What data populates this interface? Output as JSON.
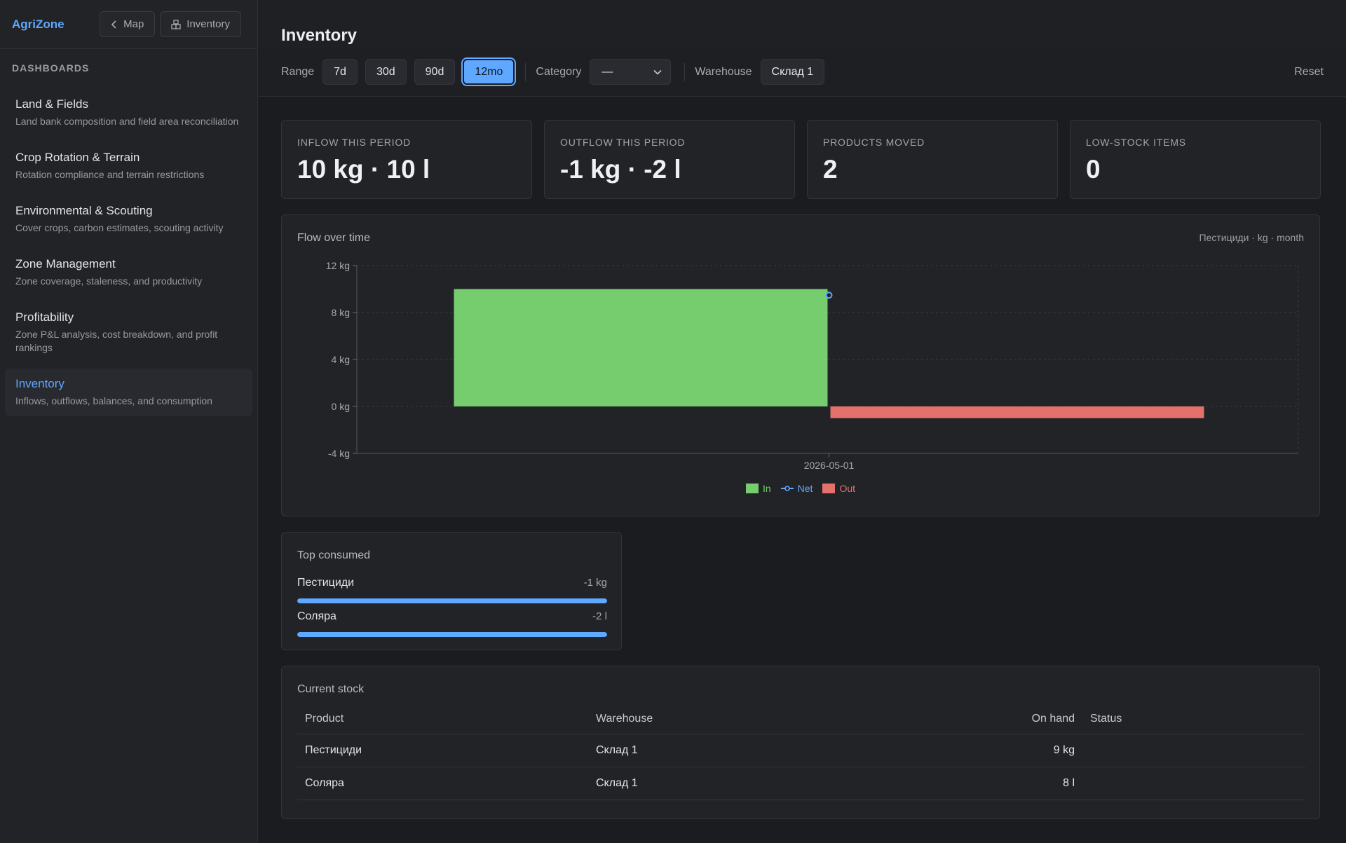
{
  "sidebar": {
    "brand": "AgriZone",
    "buttons": {
      "map": "Map",
      "inventory": "Inventory"
    },
    "section_label": "DASHBOARDS",
    "items": [
      {
        "title": "Land & Fields",
        "desc": "Land bank composition and field area reconciliation"
      },
      {
        "title": "Crop Rotation & Terrain",
        "desc": "Rotation compliance and terrain restrictions"
      },
      {
        "title": "Environmental & Scouting",
        "desc": "Cover crops, carbon estimates, scouting activity"
      },
      {
        "title": "Zone Management",
        "desc": "Zone coverage, staleness, and productivity"
      },
      {
        "title": "Profitability",
        "desc": "Zone P&L analysis, cost breakdown, and profit rankings"
      },
      {
        "title": "Inventory",
        "desc": "Inflows, outflows, balances, and consumption",
        "active": true
      }
    ]
  },
  "header": {
    "title": "Inventory"
  },
  "filters": {
    "range_label": "Range",
    "ranges": [
      "7d",
      "30d",
      "90d",
      "12mo"
    ],
    "active_range": "12mo",
    "category_label": "Category",
    "category_value": "—",
    "warehouse_label": "Warehouse",
    "warehouse_value": "Склад 1",
    "reset": "Reset"
  },
  "kpis": [
    {
      "label": "INFLOW THIS PERIOD",
      "value": "10 kg · 10 l"
    },
    {
      "label": "OUTFLOW THIS PERIOD",
      "value": "-1 kg · -2 l"
    },
    {
      "label": "PRODUCTS MOVED",
      "value": "2"
    },
    {
      "label": "LOW-STOCK ITEMS",
      "value": "0"
    }
  ],
  "chart": {
    "title": "Flow over time",
    "meta": "Пестициди · kg · month"
  },
  "chart_data": {
    "type": "bar",
    "categories": [
      "2026-05-01"
    ],
    "series": [
      {
        "name": "In",
        "values": [
          10
        ],
        "color": "#75cd6e"
      },
      {
        "name": "Net",
        "values": [
          9
        ],
        "color": "#5fa8ff"
      },
      {
        "name": "Out",
        "values": [
          -1
        ],
        "color": "#e5716d"
      }
    ],
    "y_ticks": [
      "12 kg",
      "8 kg",
      "4 kg",
      "0 kg",
      "-4 kg"
    ],
    "ylim": [
      -4,
      12
    ],
    "grid": true,
    "legend": "bottom-center"
  },
  "top_consumed": {
    "title": "Top consumed",
    "items": [
      {
        "name": "Пестициди",
        "value": "-1 kg",
        "fraction": 1.0
      },
      {
        "name": "Соляра",
        "value": "-2 l",
        "fraction": 1.0
      }
    ]
  },
  "stock": {
    "title": "Current stock",
    "columns": {
      "product": "Product",
      "warehouse": "Warehouse",
      "on_hand": "On hand",
      "status": "Status"
    },
    "rows": [
      {
        "product": "Пестициди",
        "warehouse": "Склад 1",
        "on_hand": "9 kg",
        "status": ""
      },
      {
        "product": "Соляра",
        "warehouse": "Склад 1",
        "on_hand": "8 l",
        "status": ""
      }
    ]
  }
}
